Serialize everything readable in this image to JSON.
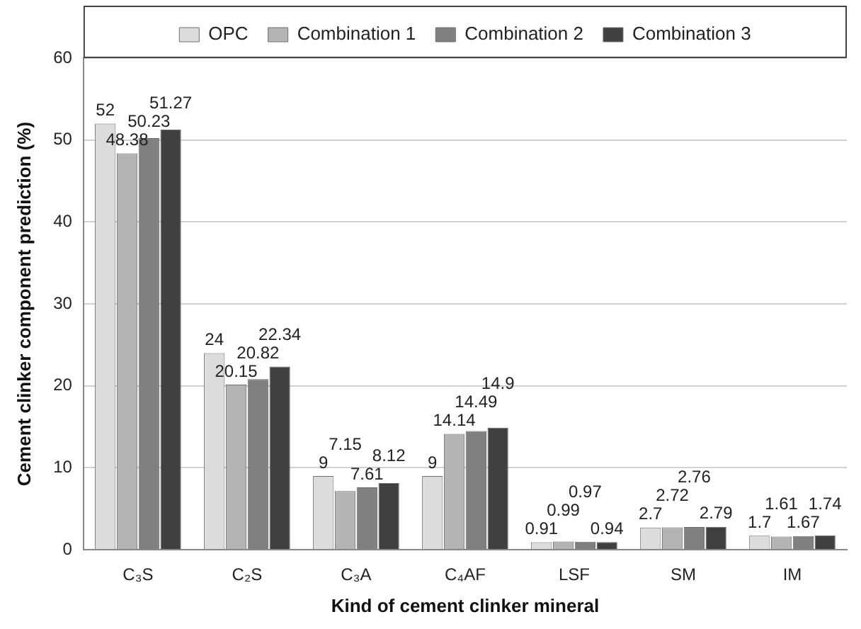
{
  "chart_data": {
    "type": "bar",
    "xlabel": "Kind of cement clinker mineral",
    "ylabel": "Cement clinker component prediction (%)",
    "categories": [
      "C₃S",
      "C₂S",
      "C₃A",
      "C₄AF",
      "LSF",
      "SM",
      "IM"
    ],
    "series": [
      {
        "name": "OPC",
        "color": "#dcdcdc",
        "values": [
          52,
          24,
          9,
          9,
          0.91,
          2.7,
          1.7
        ]
      },
      {
        "name": "Combination 1",
        "color": "#b4b4b4",
        "values": [
          48.38,
          20.15,
          7.15,
          14.14,
          0.99,
          2.72,
          1.61
        ]
      },
      {
        "name": "Combination 2",
        "color": "#808080",
        "values": [
          50.23,
          20.82,
          7.61,
          14.49,
          0.97,
          2.76,
          1.67
        ]
      },
      {
        "name": "Combination 3",
        "color": "#404040",
        "values": [
          51.27,
          22.34,
          8.12,
          14.9,
          0.94,
          2.79,
          1.74
        ]
      }
    ],
    "ylim": [
      0,
      60
    ],
    "yticks": [
      0,
      10,
      20,
      30,
      40,
      50,
      60
    ],
    "grid": "y",
    "legend": "top",
    "data_labels": true
  }
}
